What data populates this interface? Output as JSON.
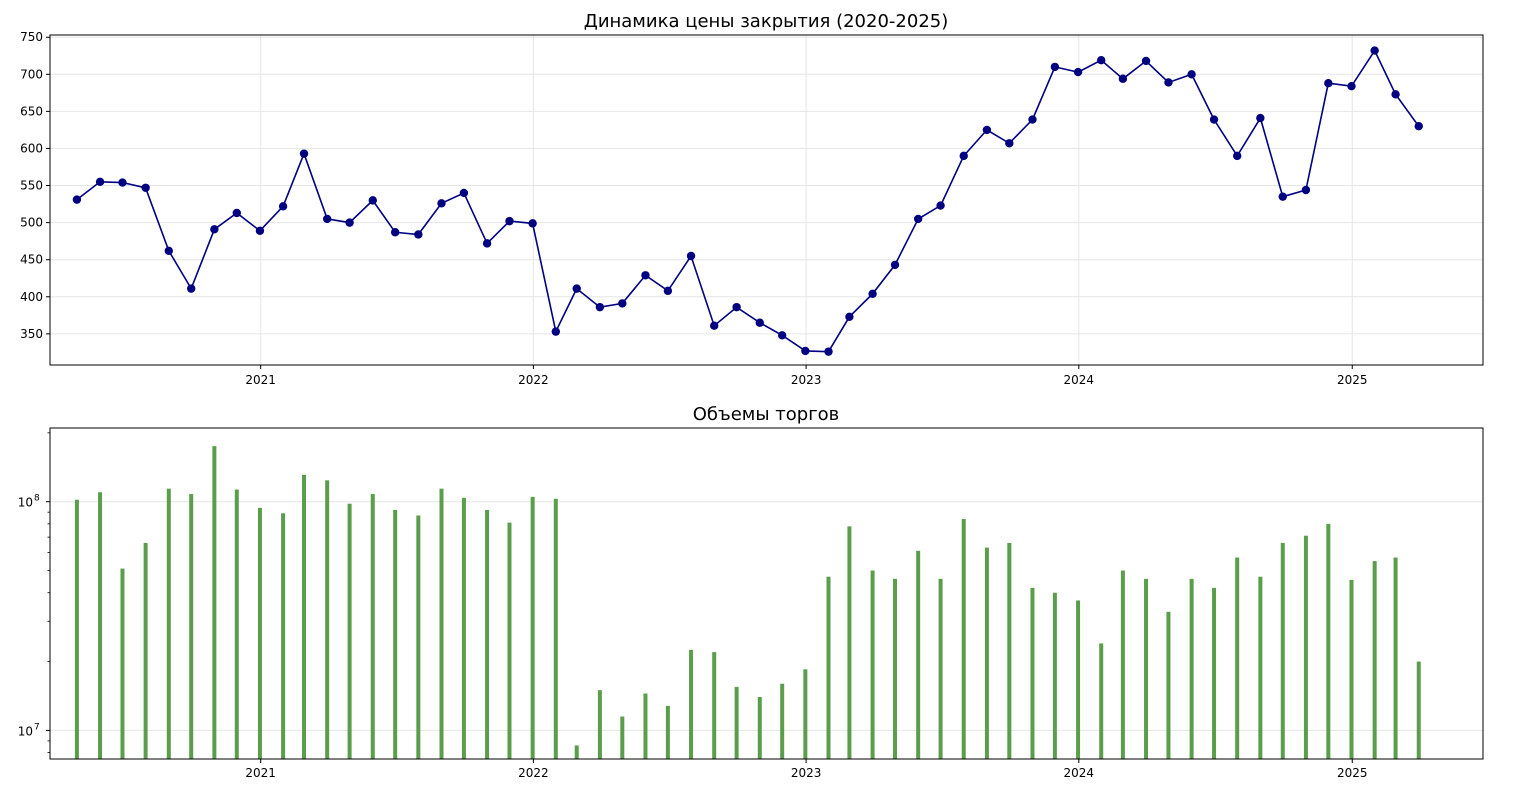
{
  "chart_data": [
    {
      "type": "line",
      "title": "Динамика цены закрытия (2020-2025)",
      "xlabel": "",
      "ylabel": "",
      "color": "#000080",
      "marker": "circle",
      "grid": true,
      "xlim": [
        "2020-03-25",
        "2025-06-25"
      ],
      "ylim": [
        308,
        753
      ],
      "xticks": [
        "2021",
        "2022",
        "2023",
        "2024",
        "2025"
      ],
      "yticks": [
        "350",
        "400",
        "450",
        "500",
        "550",
        "600",
        "650",
        "700",
        "750"
      ],
      "series": [
        {
          "x": [
            "2020-04-30",
            "2020-05-31",
            "2020-06-30",
            "2020-07-31",
            "2020-08-31",
            "2020-09-30",
            "2020-10-31",
            "2020-11-30",
            "2020-12-31",
            "2021-01-31",
            "2021-02-28",
            "2021-03-31",
            "2021-04-30",
            "2021-05-31",
            "2021-06-30",
            "2021-07-31",
            "2021-08-31",
            "2021-09-30",
            "2021-10-31",
            "2021-11-30",
            "2021-12-31",
            "2022-01-31",
            "2022-02-28",
            "2022-03-31",
            "2022-04-30",
            "2022-05-31",
            "2022-06-30",
            "2022-07-31",
            "2022-08-31",
            "2022-09-30",
            "2022-10-31",
            "2022-11-30",
            "2022-12-31",
            "2023-01-31",
            "2023-02-28",
            "2023-03-31",
            "2023-04-30",
            "2023-05-31",
            "2023-06-30",
            "2023-07-31",
            "2023-08-31",
            "2023-09-30",
            "2023-10-31",
            "2023-11-30",
            "2023-12-31",
            "2024-01-31",
            "2024-02-29",
            "2024-03-31",
            "2024-04-30",
            "2024-05-31",
            "2024-06-30",
            "2024-07-31",
            "2024-08-31",
            "2024-09-30",
            "2024-10-31",
            "2024-11-30",
            "2024-12-31",
            "2025-01-31",
            "2025-02-28",
            "2025-03-31"
          ],
          "y": [
            531,
            555,
            554,
            547,
            462,
            411,
            491,
            513,
            489,
            522,
            593,
            505,
            500,
            530,
            487,
            484,
            526,
            540,
            472,
            502,
            499,
            353,
            411,
            386,
            391,
            429,
            408,
            455,
            361,
            386,
            365,
            348,
            327,
            326,
            373,
            404,
            443,
            505,
            523,
            590,
            625,
            607,
            639,
            710,
            703,
            719,
            694,
            718,
            689,
            700,
            639,
            590,
            641,
            535,
            544,
            688,
            684,
            732,
            673,
            630
          ]
        }
      ]
    },
    {
      "type": "bar",
      "title": "Объемы торгов",
      "xlabel": "",
      "ylabel": "",
      "color": "#5a9e4b",
      "yscale": "log",
      "grid": "y",
      "xlim": [
        "2020-03-25",
        "2025-06-25"
      ],
      "ylim": [
        7500000,
        210000000
      ],
      "xticks": [
        "2021",
        "2022",
        "2023",
        "2024",
        "2025"
      ],
      "yticks": [
        {
          "base": "10",
          "exp": "7"
        },
        {
          "base": "10",
          "exp": "8"
        }
      ],
      "series": [
        {
          "x": [
            "2020-04-30",
            "2020-05-31",
            "2020-06-30",
            "2020-07-31",
            "2020-08-31",
            "2020-09-30",
            "2020-10-31",
            "2020-11-30",
            "2020-12-31",
            "2021-01-31",
            "2021-02-28",
            "2021-03-31",
            "2021-04-30",
            "2021-05-31",
            "2021-06-30",
            "2021-07-31",
            "2021-08-31",
            "2021-09-30",
            "2021-10-31",
            "2021-11-30",
            "2021-12-31",
            "2022-01-31",
            "2022-02-28",
            "2022-03-31",
            "2022-04-30",
            "2022-05-31",
            "2022-06-30",
            "2022-07-31",
            "2022-08-31",
            "2022-09-30",
            "2022-10-31",
            "2022-11-30",
            "2022-12-31",
            "2023-01-31",
            "2023-02-28",
            "2023-03-31",
            "2023-04-30",
            "2023-05-31",
            "2023-06-30",
            "2023-07-31",
            "2023-08-31",
            "2023-09-30",
            "2023-10-31",
            "2023-11-30",
            "2023-12-31",
            "2024-01-31",
            "2024-02-29",
            "2024-03-31",
            "2024-04-30",
            "2024-05-31",
            "2024-06-30",
            "2024-07-31",
            "2024-08-31",
            "2024-09-30",
            "2024-10-31",
            "2024-11-30",
            "2024-12-31",
            "2025-01-31",
            "2025-02-28",
            "2025-03-31"
          ],
          "y": [
            102000000,
            110000000,
            51000000,
            66000000,
            114000000,
            108000000,
            175000000,
            113000000,
            94000000,
            89000000,
            131000000,
            124000000,
            98000000,
            108000000,
            92000000,
            87000000,
            114000000,
            104000000,
            92000000,
            81000000,
            105000000,
            103000000,
            8600000,
            15000000,
            11500000,
            14500000,
            12800000,
            22500000,
            22000000,
            15500000,
            14000000,
            16000000,
            18500000,
            47000000,
            78000000,
            50000000,
            46000000,
            61000000,
            46000000,
            84000000,
            63000000,
            66000000,
            42000000,
            40000000,
            37000000,
            24000000,
            50000000,
            46000000,
            33000000,
            46000000,
            42000000,
            57000000,
            47000000,
            66000000,
            71000000,
            80000000,
            45500000,
            55000000,
            57000000,
            20000000
          ]
        }
      ]
    }
  ]
}
